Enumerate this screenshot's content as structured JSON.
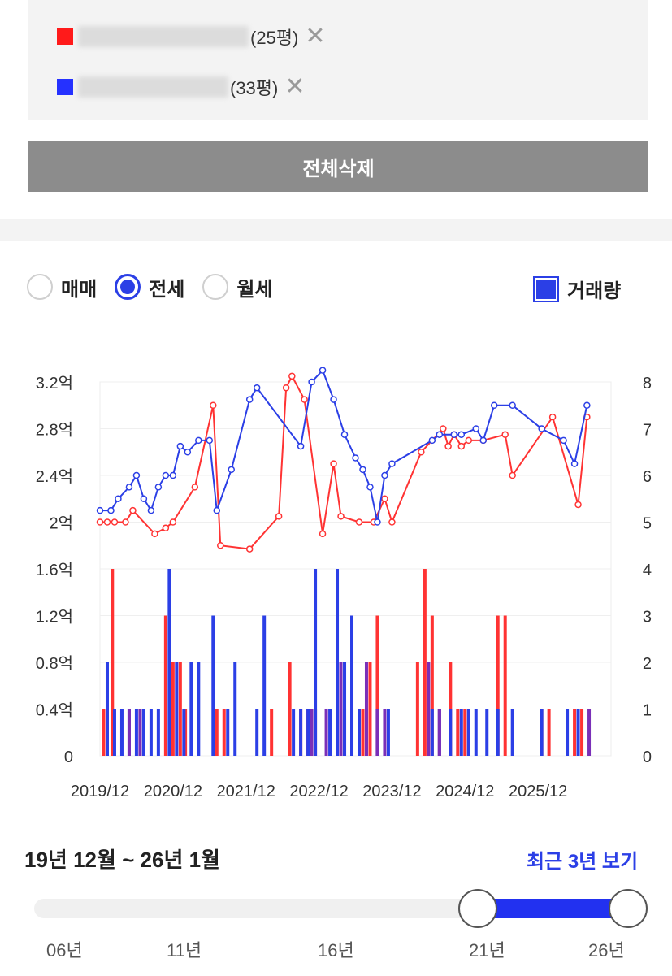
{
  "compare_list": {
    "items": [
      {
        "color": "#ff1a1a",
        "size_text": "(25평)",
        "remove": "✕"
      },
      {
        "color": "#2531ff",
        "size_text": "(33평)",
        "remove": "✕"
      }
    ],
    "delete_all_label": "전체삭제"
  },
  "trade_types": {
    "options": [
      "매매",
      "전세",
      "월세"
    ],
    "selected": "전세"
  },
  "volume_toggle": {
    "label": "거래량",
    "checked": true
  },
  "colors": {
    "red": "#ff3333",
    "blue": "#2b3fe6",
    "purple": "#7a2fb8"
  },
  "chart_data": {
    "type": "line",
    "x_tick_labels": [
      "2019/12",
      "2020/12",
      "2021/12",
      "2022/12",
      "2023/12",
      "2024/12",
      "2025/12"
    ],
    "y_left_ticks": [
      "0",
      "0.4억",
      "0.8억",
      "1.2억",
      "1.6억",
      "2억",
      "2.4억",
      "2.8억",
      "3.2억"
    ],
    "y_left_range": [
      0,
      3.2
    ],
    "y_right_ticks": [
      "0",
      "1",
      "2",
      "3",
      "4",
      "5",
      "6",
      "7",
      "8"
    ],
    "y_right_range": [
      0,
      8
    ],
    "series": [
      {
        "color": "red",
        "price_points": [
          [
            2019.95,
            2.0
          ],
          [
            2020.05,
            2.0
          ],
          [
            2020.15,
            2.0
          ],
          [
            2020.3,
            2.0
          ],
          [
            2020.4,
            2.1
          ],
          [
            2020.7,
            1.9
          ],
          [
            2020.85,
            1.95
          ],
          [
            2020.95,
            2.0
          ],
          [
            2021.25,
            2.3
          ],
          [
            2021.5,
            3.0
          ],
          [
            2021.6,
            1.8
          ],
          [
            2022.0,
            1.77
          ],
          [
            2022.4,
            2.05
          ],
          [
            2022.5,
            3.15
          ],
          [
            2022.58,
            3.25
          ],
          [
            2022.75,
            3.05
          ],
          [
            2023.0,
            1.9
          ],
          [
            2023.15,
            2.5
          ],
          [
            2023.25,
            2.05
          ],
          [
            2023.5,
            2.0
          ],
          [
            2023.7,
            2.0
          ],
          [
            2023.85,
            2.2
          ],
          [
            2023.95,
            2.0
          ],
          [
            2024.35,
            2.6
          ],
          [
            2024.65,
            2.8
          ],
          [
            2024.72,
            2.65
          ],
          [
            2024.8,
            2.75
          ],
          [
            2024.9,
            2.65
          ],
          [
            2025.0,
            2.7
          ],
          [
            2025.2,
            2.7
          ],
          [
            2025.5,
            2.75
          ],
          [
            2025.6,
            2.4
          ],
          [
            2026.15,
            2.9
          ],
          [
            2026.5,
            2.15
          ],
          [
            2026.62,
            2.9
          ]
        ],
        "volume": [
          [
            2020.0,
            1
          ],
          [
            2020.12,
            4
          ],
          [
            2020.85,
            3
          ],
          [
            2020.95,
            2
          ],
          [
            2021.05,
            2
          ],
          [
            2021.12,
            1
          ],
          [
            2021.55,
            1
          ],
          [
            2021.65,
            1
          ],
          [
            2022.3,
            1
          ],
          [
            2022.55,
            2
          ],
          [
            2022.7,
            1
          ],
          [
            2022.8,
            1
          ],
          [
            2022.9,
            1
          ],
          [
            2023.2,
            2
          ],
          [
            2023.3,
            1
          ],
          [
            2023.4,
            1
          ],
          [
            2023.55,
            1
          ],
          [
            2023.65,
            2
          ],
          [
            2023.75,
            3
          ],
          [
            2024.3,
            2
          ],
          [
            2024.4,
            4
          ],
          [
            2024.5,
            3
          ],
          [
            2024.6,
            1
          ],
          [
            2024.75,
            2
          ],
          [
            2024.85,
            1
          ],
          [
            2024.95,
            1
          ],
          [
            2025.4,
            3
          ],
          [
            2025.5,
            3
          ],
          [
            2026.0,
            1
          ],
          [
            2026.1,
            1
          ],
          [
            2026.45,
            1
          ],
          [
            2026.55,
            1
          ]
        ]
      },
      {
        "color": "blue",
        "price_points": [
          [
            2019.95,
            2.1
          ],
          [
            2020.1,
            2.1
          ],
          [
            2020.2,
            2.2
          ],
          [
            2020.35,
            2.3
          ],
          [
            2020.45,
            2.4
          ],
          [
            2020.55,
            2.2
          ],
          [
            2020.65,
            2.1
          ],
          [
            2020.75,
            2.3
          ],
          [
            2020.85,
            2.4
          ],
          [
            2020.95,
            2.4
          ],
          [
            2021.05,
            2.65
          ],
          [
            2021.15,
            2.6
          ],
          [
            2021.3,
            2.7
          ],
          [
            2021.45,
            2.7
          ],
          [
            2021.55,
            2.1
          ],
          [
            2021.75,
            2.45
          ],
          [
            2022.0,
            3.05
          ],
          [
            2022.1,
            3.15
          ],
          [
            2022.7,
            2.65
          ],
          [
            2022.85,
            3.2
          ],
          [
            2023.0,
            3.3
          ],
          [
            2023.15,
            3.05
          ],
          [
            2023.3,
            2.75
          ],
          [
            2023.45,
            2.55
          ],
          [
            2023.55,
            2.45
          ],
          [
            2023.65,
            2.3
          ],
          [
            2023.75,
            2.0
          ],
          [
            2023.85,
            2.4
          ],
          [
            2023.95,
            2.5
          ],
          [
            2024.5,
            2.7
          ],
          [
            2024.6,
            2.75
          ],
          [
            2024.8,
            2.75
          ],
          [
            2024.9,
            2.75
          ],
          [
            2025.1,
            2.8
          ],
          [
            2025.2,
            2.7
          ],
          [
            2025.35,
            3.0
          ],
          [
            2025.6,
            3.0
          ],
          [
            2026.0,
            2.8
          ],
          [
            2026.3,
            2.7
          ],
          [
            2026.45,
            2.5
          ],
          [
            2026.62,
            3.0
          ]
        ],
        "volume": [
          [
            2020.05,
            2
          ],
          [
            2020.15,
            1
          ],
          [
            2020.25,
            1
          ],
          [
            2020.35,
            1
          ],
          [
            2020.45,
            1
          ],
          [
            2020.55,
            1
          ],
          [
            2020.65,
            1
          ],
          [
            2020.75,
            1
          ],
          [
            2020.9,
            4
          ],
          [
            2021.0,
            2
          ],
          [
            2021.1,
            1
          ],
          [
            2021.2,
            2
          ],
          [
            2021.3,
            2
          ],
          [
            2021.5,
            3
          ],
          [
            2021.7,
            1
          ],
          [
            2021.8,
            2
          ],
          [
            2022.1,
            1
          ],
          [
            2022.2,
            3
          ],
          [
            2022.6,
            1
          ],
          [
            2022.7,
            1
          ],
          [
            2022.8,
            1
          ],
          [
            2022.9,
            4
          ],
          [
            2023.1,
            1
          ],
          [
            2023.2,
            4
          ],
          [
            2023.3,
            2
          ],
          [
            2023.4,
            3
          ],
          [
            2023.5,
            1
          ],
          [
            2023.6,
            1
          ],
          [
            2023.75,
            1
          ],
          [
            2023.9,
            1
          ],
          [
            2024.5,
            1
          ],
          [
            2024.6,
            1
          ],
          [
            2024.75,
            1
          ],
          [
            2024.9,
            1
          ],
          [
            2025.0,
            1
          ],
          [
            2025.1,
            1
          ],
          [
            2025.25,
            1
          ],
          [
            2025.4,
            1
          ],
          [
            2025.6,
            1
          ],
          [
            2026.0,
            1
          ],
          [
            2026.35,
            1
          ],
          [
            2026.5,
            1
          ]
        ]
      }
    ],
    "overlap_volume": [
      [
        2020.35,
        1
      ],
      [
        2020.5,
        1
      ],
      [
        2022.85,
        1
      ],
      [
        2023.05,
        1
      ],
      [
        2023.25,
        2
      ],
      [
        2023.6,
        2
      ],
      [
        2023.75,
        1
      ],
      [
        2023.85,
        1
      ],
      [
        2024.45,
        2
      ],
      [
        2024.6,
        1
      ],
      [
        2026.65,
        1
      ]
    ]
  },
  "range": {
    "label": "19년 12월 ~ 26년 1월",
    "recent_link": "최근 3년 보기",
    "ticks": [
      "06년",
      "11년",
      "16년",
      "21년",
      "26년"
    ]
  }
}
